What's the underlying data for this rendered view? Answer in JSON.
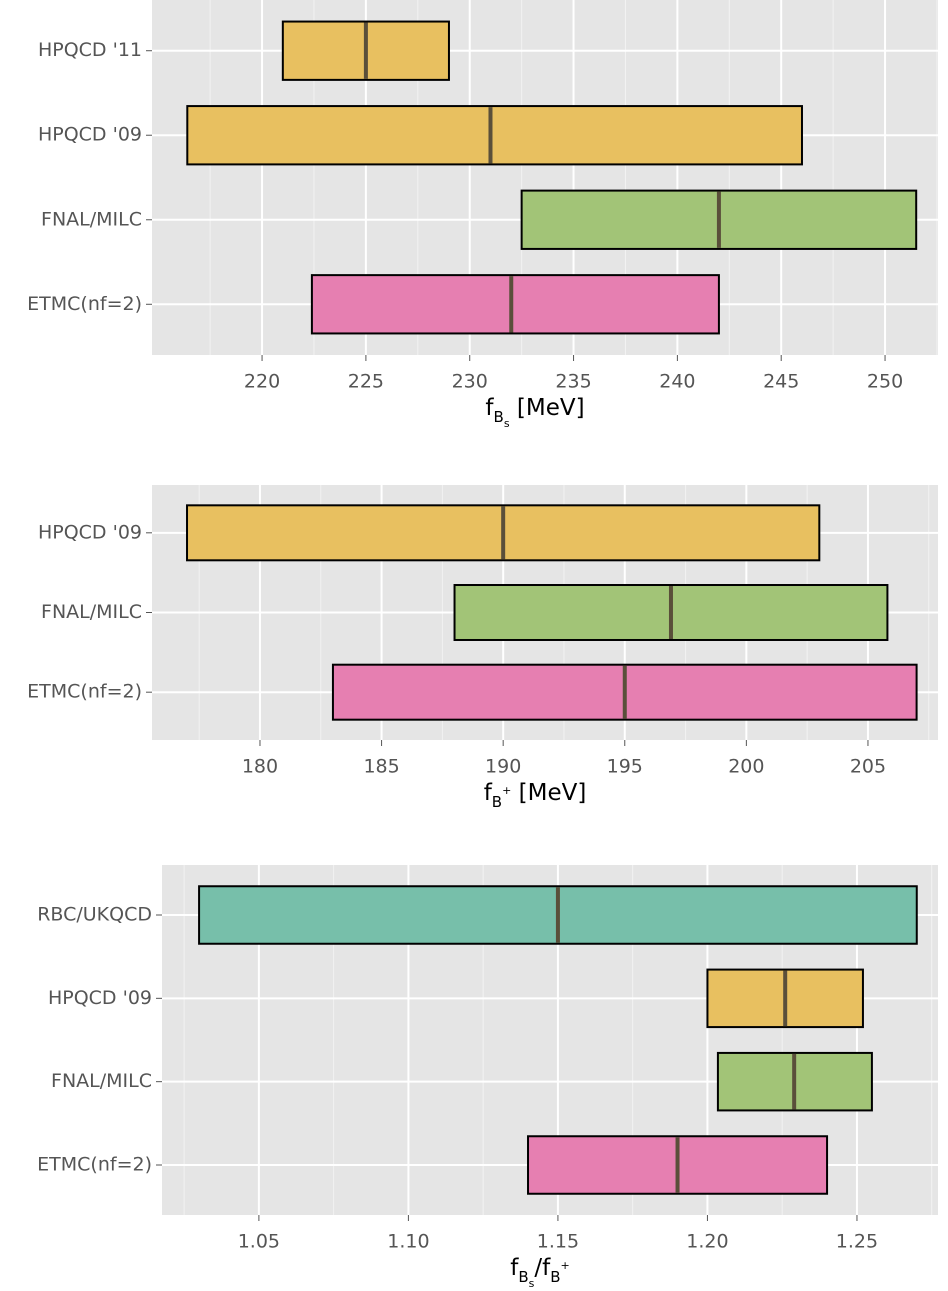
{
  "chart_data": [
    {
      "type": "range",
      "categories": [
        "HPQCD '11",
        "HPQCD '09",
        "FNAL/MILC",
        "ETMC(nf=2)"
      ],
      "low": [
        221,
        216.4,
        232.5,
        222.4
      ],
      "mid": [
        225,
        231,
        242,
        232
      ],
      "high": [
        229,
        246,
        251.5,
        242
      ],
      "colors": [
        "#e8c060",
        "#e8c060",
        "#a2c477",
        "#e67fb1"
      ],
      "xlim": [
        214.7,
        252.55
      ],
      "xticks": [
        220,
        225,
        230,
        235,
        240,
        245,
        250
      ],
      "xlabel": [
        "f",
        "B",
        "s",
        " [MeV]"
      ],
      "xlabel_levels": [
        0,
        1,
        2,
        0
      ],
      "grid": true
    },
    {
      "type": "range",
      "categories": [
        "HPQCD '09",
        "FNAL/MILC",
        "ETMC(nf=2)"
      ],
      "low": [
        177,
        188,
        183
      ],
      "mid": [
        190,
        196.9,
        195
      ],
      "high": [
        203,
        205.8,
        207
      ],
      "colors": [
        "#e8c060",
        "#a2c477",
        "#e67fb1"
      ],
      "xlim": [
        175.56,
        207.88
      ],
      "xticks": [
        180,
        185,
        190,
        195,
        200,
        205
      ],
      "xlabel": [
        "f",
        "B",
        "+",
        " [MeV]"
      ],
      "xlabel_levels": [
        0,
        1,
        3,
        0
      ],
      "grid": true
    },
    {
      "type": "range",
      "categories": [
        "RBC/UKQCD",
        "HPQCD '09",
        "FNAL/MILC",
        "ETMC(nf=2)"
      ],
      "low": [
        1.03,
        1.2,
        1.2035,
        1.14
      ],
      "mid": [
        1.15,
        1.226,
        1.229,
        1.19
      ],
      "high": [
        1.27,
        1.252,
        1.255,
        1.24
      ],
      "colors": [
        "#77bfaa",
        "#e8c060",
        "#a2c477",
        "#e67fb1"
      ],
      "xlim": [
        1.0176,
        1.2771
      ],
      "xticks": [
        {
          "value": 1.05,
          "label": "1.05"
        },
        {
          "value": 1.1,
          "label": "1.10"
        },
        {
          "value": 1.15,
          "label": "1.15"
        },
        {
          "value": 1.2,
          "label": "1.20"
        },
        {
          "value": 1.25,
          "label": "1.25"
        }
      ],
      "xlabel": [
        "f",
        "B",
        "s",
        "/",
        "f",
        "B",
        "+"
      ],
      "xlabel_levels": [
        0,
        1,
        2,
        0,
        0,
        1,
        3
      ],
      "grid": true
    }
  ]
}
